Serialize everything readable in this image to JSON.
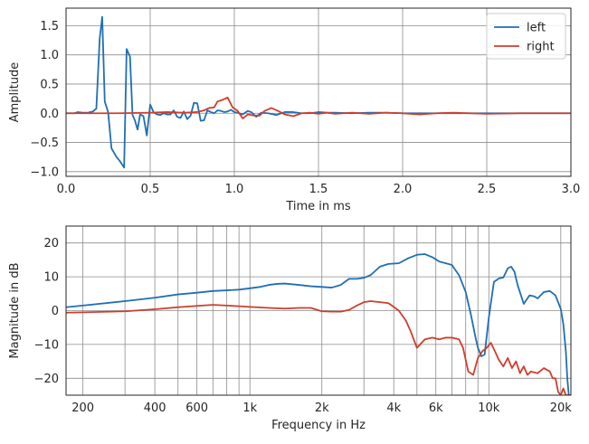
{
  "chart_data": [
    {
      "type": "line",
      "xlabel": "Time in ms",
      "ylabel": "Amplitude",
      "xlim": [
        0.0,
        3.0
      ],
      "ylim": [
        -1.08,
        1.8
      ],
      "xscale": "linear",
      "xticks": [
        0.0,
        0.5,
        1.0,
        1.5,
        2.0,
        2.5,
        3.0
      ],
      "xtick_labels": [
        "0.0",
        "0.5",
        "1.0",
        "1.5",
        "2.0",
        "2.5",
        "3.0"
      ],
      "yticks": [
        -1.0,
        -0.5,
        0.0,
        0.5,
        1.0,
        1.5
      ],
      "ytick_labels": [
        "−1.0",
        "−0.5",
        "0.0",
        "0.5",
        "1.0",
        "1.5"
      ],
      "grid": true,
      "legend": "top-right",
      "series": [
        {
          "name": "left",
          "color": "#1f6fb4",
          "x": [
            0.0,
            0.05,
            0.07,
            0.1,
            0.13,
            0.16,
            0.18,
            0.2,
            0.215,
            0.23,
            0.25,
            0.27,
            0.29,
            0.3,
            0.32,
            0.345,
            0.36,
            0.38,
            0.395,
            0.41,
            0.425,
            0.44,
            0.46,
            0.48,
            0.5,
            0.52,
            0.54,
            0.56,
            0.58,
            0.6,
            0.62,
            0.64,
            0.66,
            0.68,
            0.7,
            0.72,
            0.74,
            0.76,
            0.78,
            0.8,
            0.82,
            0.84,
            0.86,
            0.88,
            0.9,
            0.92,
            0.94,
            0.96,
            0.98,
            1.0,
            1.02,
            1.05,
            1.08,
            1.1,
            1.13,
            1.16,
            1.2,
            1.25,
            1.3,
            1.35,
            1.4,
            1.45,
            1.5,
            1.55,
            1.6,
            1.7,
            1.8,
            1.9,
            2.0,
            2.2,
            2.5,
            2.8,
            3.0
          ],
          "y": [
            0.0,
            0.0,
            0.02,
            0.01,
            0.01,
            0.03,
            0.08,
            1.28,
            1.65,
            0.2,
            0.02,
            -0.6,
            -0.7,
            -0.75,
            -0.82,
            -0.93,
            1.1,
            0.97,
            -0.03,
            -0.13,
            -0.28,
            -0.02,
            -0.05,
            -0.38,
            0.15,
            0.02,
            -0.02,
            -0.03,
            0.0,
            -0.02,
            -0.02,
            0.05,
            -0.06,
            -0.08,
            0.03,
            -0.1,
            -0.04,
            0.18,
            0.17,
            -0.13,
            -0.12,
            0.05,
            0.02,
            0.0,
            0.05,
            0.04,
            0.02,
            0.03,
            0.06,
            0.02,
            0.01,
            -0.02,
            0.04,
            0.02,
            -0.06,
            0.01,
            0.0,
            -0.03,
            0.02,
            0.02,
            0.0,
            0.0,
            0.02,
            0.01,
            0.01,
            0.0,
            0.01,
            0.01,
            0.0,
            0.0,
            0.0,
            0.0,
            0.0
          ]
        },
        {
          "name": "right",
          "color": "#d03d2b",
          "x": [
            0.0,
            0.3,
            0.5,
            0.6,
            0.7,
            0.78,
            0.82,
            0.85,
            0.88,
            0.9,
            0.93,
            0.96,
            0.99,
            1.02,
            1.05,
            1.08,
            1.12,
            1.15,
            1.18,
            1.22,
            1.26,
            1.3,
            1.35,
            1.4,
            1.45,
            1.5,
            1.55,
            1.6,
            1.65,
            1.7,
            1.8,
            1.9,
            2.0,
            2.1,
            2.2,
            2.3,
            2.5,
            2.7,
            3.0
          ],
          "y": [
            0.0,
            0.0,
            0.01,
            0.02,
            0.01,
            0.02,
            0.05,
            0.09,
            0.1,
            0.2,
            0.23,
            0.27,
            0.1,
            0.04,
            -0.09,
            -0.02,
            -0.04,
            -0.04,
            0.04,
            0.09,
            0.04,
            -0.02,
            -0.05,
            0.0,
            0.01,
            -0.01,
            0.01,
            -0.01,
            0.0,
            0.01,
            -0.01,
            0.01,
            0.0,
            -0.02,
            0.0,
            0.01,
            -0.01,
            0.0,
            0.0
          ]
        }
      ]
    },
    {
      "type": "line",
      "xlabel": "Frequency in Hz",
      "ylabel": "Magnitude in dB",
      "xlim": [
        170,
        22050
      ],
      "ylim": [
        -25,
        25
      ],
      "xscale": "log",
      "xticks": [
        200,
        400,
        600,
        1000,
        2000,
        4000,
        6000,
        10000,
        20000
      ],
      "xtick_labels": [
        "200",
        "400",
        "600",
        "1k",
        "2k",
        "4k",
        "6k",
        "10k",
        "20k"
      ],
      "yticks": [
        -20,
        -10,
        0,
        10,
        20
      ],
      "ytick_labels": [
        "−20",
        "−10",
        "0",
        "10",
        "20"
      ],
      "grid": true,
      "series": [
        {
          "name": "left",
          "color": "#1f6fb4",
          "x": [
            170,
            200,
            300,
            400,
            500,
            600,
            700,
            800,
            900,
            1000,
            1100,
            1200,
            1300,
            1400,
            1600,
            1800,
            2000,
            2200,
            2400,
            2600,
            2800,
            3000,
            3200,
            3500,
            3800,
            4200,
            4600,
            5000,
            5400,
            5800,
            6200,
            6600,
            7000,
            7500,
            8000,
            8400,
            8800,
            9000,
            9300,
            9600,
            10000,
            10500,
            11000,
            11500,
            12000,
            12400,
            12800,
            13200,
            14000,
            14800,
            15500,
            16000,
            17000,
            18000,
            19000,
            20000,
            20500,
            21000,
            21300,
            21600,
            22050
          ],
          "y": [
            1.0,
            1.5,
            2.8,
            3.8,
            4.8,
            5.3,
            5.8,
            6.0,
            6.2,
            6.6,
            7.0,
            7.6,
            7.9,
            8.0,
            7.6,
            7.2,
            7.0,
            6.8,
            7.6,
            9.4,
            9.4,
            9.7,
            10.5,
            13.0,
            13.8,
            14.0,
            15.5,
            16.5,
            16.7,
            15.8,
            14.5,
            14.0,
            13.5,
            10.5,
            5.5,
            -1.0,
            -8.0,
            -11.0,
            -13.5,
            -13.0,
            -2.0,
            8.5,
            9.5,
            9.8,
            12.5,
            13.0,
            11.5,
            7.5,
            2.0,
            4.5,
            4.2,
            3.6,
            5.5,
            5.8,
            4.5,
            0.5,
            -4.0,
            -12.0,
            -20.0,
            -25.0,
            -25.0
          ]
        },
        {
          "name": "right",
          "color": "#d03d2b",
          "x": [
            170,
            200,
            300,
            400,
            500,
            600,
            700,
            800,
            900,
            1000,
            1200,
            1400,
            1600,
            1800,
            2000,
            2200,
            2400,
            2600,
            2800,
            3000,
            3200,
            3500,
            3800,
            4200,
            4500,
            4700,
            5000,
            5400,
            5800,
            6200,
            6600,
            7000,
            7500,
            7800,
            8200,
            8600,
            9000,
            9400,
            9800,
            10200,
            10600,
            11000,
            11500,
            12000,
            12500,
            13000,
            13500,
            14000,
            14500,
            15000,
            16000,
            17000,
            18000,
            18500,
            19000,
            19500,
            20000,
            20500,
            21000,
            22050
          ],
          "y": [
            -0.6,
            -0.5,
            -0.2,
            0.4,
            1.0,
            1.4,
            1.7,
            1.5,
            1.3,
            1.1,
            0.8,
            0.6,
            0.8,
            0.8,
            -0.2,
            -0.3,
            -0.3,
            0.2,
            1.5,
            2.5,
            2.8,
            2.5,
            2.2,
            0.0,
            -3.0,
            -6.0,
            -11.0,
            -8.5,
            -8.0,
            -8.5,
            -8.0,
            -8.0,
            -8.5,
            -11.0,
            -18.0,
            -19.0,
            -14.0,
            -12.0,
            -11.0,
            -9.5,
            -12.0,
            -14.5,
            -16.5,
            -14.0,
            -17.0,
            -15.0,
            -18.5,
            -16.5,
            -19.0,
            -18.0,
            -18.5,
            -17.0,
            -18.0,
            -20.0,
            -20.0,
            -24.0,
            -25.0,
            -23.0,
            -25.0,
            -25.0
          ]
        }
      ]
    }
  ]
}
